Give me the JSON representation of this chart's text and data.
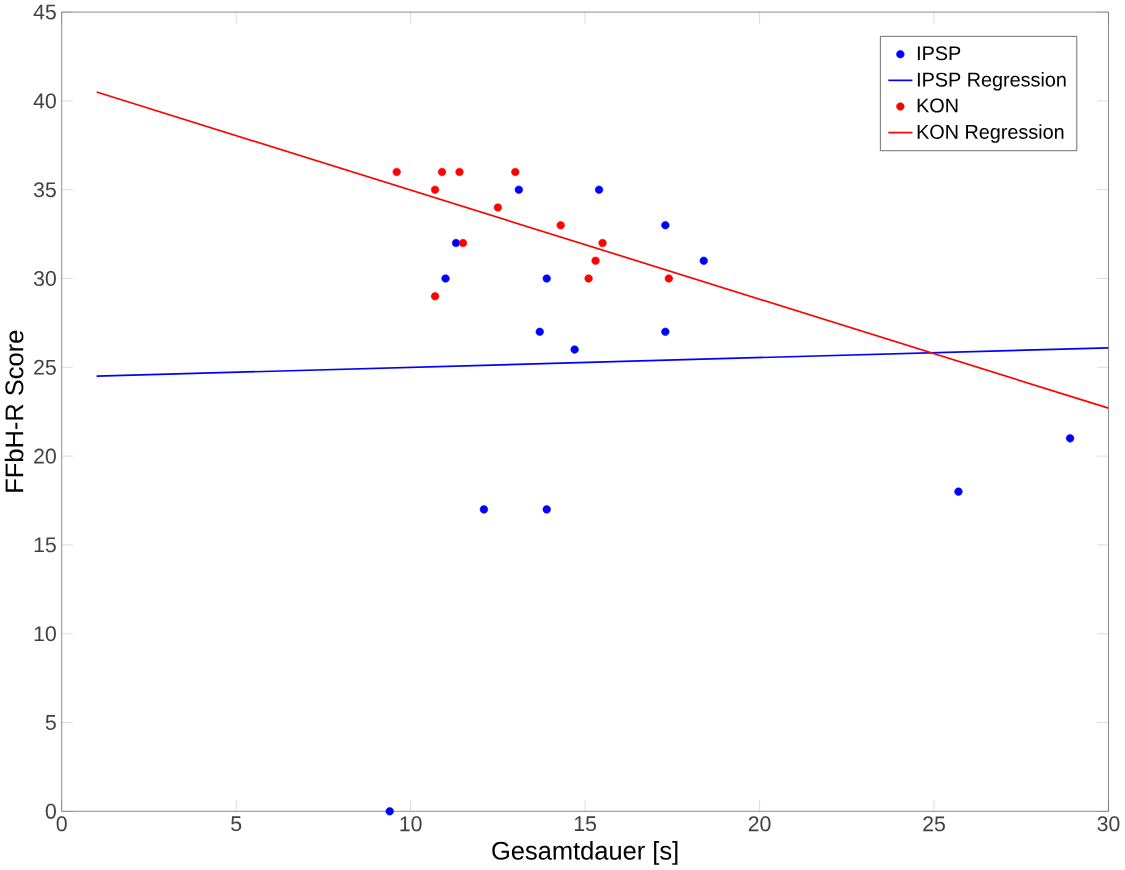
{
  "chart_data": {
    "type": "scatter",
    "xlabel": "Gesamtdauer [s]",
    "ylabel": "FFbH-R Score",
    "xlim": [
      0,
      30
    ],
    "ylim": [
      0,
      45
    ],
    "xticks": [
      0,
      5,
      10,
      15,
      20,
      25,
      30
    ],
    "yticks": [
      0,
      5,
      10,
      15,
      20,
      25,
      30,
      35,
      40,
      45
    ],
    "legend": "top right",
    "grid": false,
    "series": [
      {
        "name": "IPSP",
        "marker": "circle",
        "color": "#0000ff",
        "x": [
          11.0,
          11.3,
          13.1,
          13.7,
          13.9,
          14.7,
          15.4,
          17.3,
          17.3,
          18.4,
          12.1,
          13.9,
          9.4,
          25.7,
          28.9
        ],
        "values": [
          30,
          32,
          35,
          27,
          30,
          26,
          35,
          33,
          27,
          31,
          17,
          17,
          0,
          18,
          21
        ]
      },
      {
        "name": "IPSP Regression",
        "type": "line",
        "marker": "none",
        "color": "#0000ff",
        "x": [
          1,
          30
        ],
        "values": [
          24.5,
          26.1
        ]
      },
      {
        "name": "KON",
        "marker": "circle",
        "color": "#ff0000",
        "x": [
          9.6,
          10.7,
          10.9,
          11.4,
          11.5,
          10.7,
          12.5,
          13.0,
          14.3,
          15.1,
          15.3,
          15.5,
          17.4
        ],
        "values": [
          36,
          35,
          36,
          36,
          32,
          29,
          34,
          36,
          33,
          30,
          31,
          32,
          30
        ]
      },
      {
        "name": "KON Regression",
        "type": "line",
        "marker": "none",
        "color": "#ff0000",
        "x": [
          1,
          30
        ],
        "values": [
          40.5,
          22.7
        ]
      }
    ]
  }
}
